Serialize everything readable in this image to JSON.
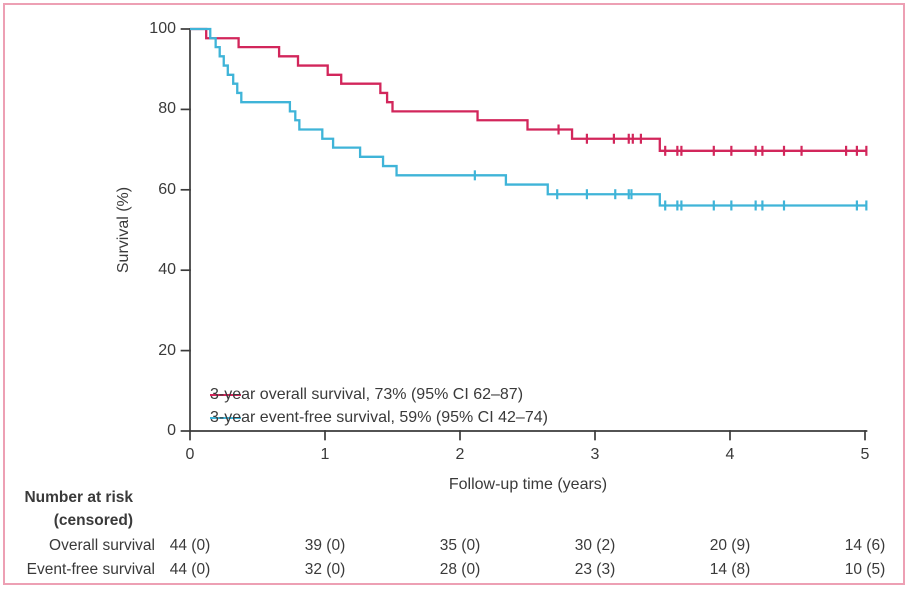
{
  "figure": {
    "background_color": "#ffffff",
    "border_color": "#eda0b4",
    "axis_color": "#3b3b3b",
    "text_color": "#3a3a3a"
  },
  "chart_data": {
    "type": "line",
    "variant": "kaplan-meier-step",
    "title": "",
    "xlabel": "Follow-up time (years)",
    "ylabel": "Survival (%)",
    "xlim": [
      0,
      5
    ],
    "ylim": [
      0,
      100
    ],
    "xticks": [
      0,
      1,
      2,
      3,
      4,
      5
    ],
    "yticks": [
      0,
      20,
      40,
      60,
      80,
      100
    ],
    "grid": false,
    "legend_position": "inside-lower-left",
    "series": [
      {
        "name": "Overall survival",
        "color": "#d2265b",
        "legend_label": "3-year overall survival, 73% (95% CI 62–87)",
        "steps": [
          [
            0,
            100
          ],
          [
            0.12,
            97.7
          ],
          [
            0.36,
            95.5
          ],
          [
            0.66,
            93.2
          ],
          [
            0.8,
            90.9
          ],
          [
            1.02,
            88.6
          ],
          [
            1.12,
            86.4
          ],
          [
            1.41,
            84.1
          ],
          [
            1.46,
            81.8
          ],
          [
            1.5,
            79.5
          ],
          [
            2.13,
            77.3
          ],
          [
            2.5,
            75.0
          ],
          [
            2.83,
            72.7
          ],
          [
            3.48,
            69.7
          ]
        ],
        "end_time": 5.01,
        "censor_marks": [
          [
            2.73,
            75.0
          ],
          [
            2.94,
            72.7
          ],
          [
            3.14,
            72.7
          ],
          [
            3.25,
            72.7
          ],
          [
            3.28,
            72.7
          ],
          [
            3.34,
            72.7
          ],
          [
            3.52,
            69.7
          ],
          [
            3.61,
            69.7
          ],
          [
            3.64,
            69.7
          ],
          [
            3.88,
            69.7
          ],
          [
            4.01,
            69.7
          ],
          [
            4.19,
            69.7
          ],
          [
            4.24,
            69.7
          ],
          [
            4.4,
            69.7
          ],
          [
            4.53,
            69.7
          ],
          [
            4.86,
            69.7
          ],
          [
            4.94,
            69.7
          ],
          [
            5.01,
            69.7
          ]
        ]
      },
      {
        "name": "Event-free survival",
        "color": "#3fb4d8",
        "legend_label": "3-year event-free survival, 59% (95% CI 42–74)",
        "steps": [
          [
            0,
            100
          ],
          [
            0.15,
            97.7
          ],
          [
            0.19,
            95.5
          ],
          [
            0.22,
            93.2
          ],
          [
            0.25,
            90.9
          ],
          [
            0.28,
            88.6
          ],
          [
            0.32,
            86.4
          ],
          [
            0.35,
            84.1
          ],
          [
            0.38,
            81.8
          ],
          [
            0.74,
            79.5
          ],
          [
            0.78,
            77.3
          ],
          [
            0.81,
            75.0
          ],
          [
            0.98,
            72.7
          ],
          [
            1.06,
            70.5
          ],
          [
            1.26,
            68.2
          ],
          [
            1.43,
            65.9
          ],
          [
            1.53,
            63.6
          ],
          [
            2.34,
            61.3
          ],
          [
            2.65,
            58.9
          ],
          [
            3.48,
            56.1
          ]
        ],
        "end_time": 5.01,
        "censor_marks": [
          [
            2.11,
            63.6
          ],
          [
            2.72,
            58.9
          ],
          [
            2.94,
            58.9
          ],
          [
            3.15,
            58.9
          ],
          [
            3.25,
            58.9
          ],
          [
            3.27,
            58.9
          ],
          [
            3.52,
            56.1
          ],
          [
            3.61,
            56.1
          ],
          [
            3.64,
            56.1
          ],
          [
            3.88,
            56.1
          ],
          [
            4.01,
            56.1
          ],
          [
            4.19,
            56.1
          ],
          [
            4.24,
            56.1
          ],
          [
            4.4,
            56.1
          ],
          [
            4.94,
            56.1
          ],
          [
            5.01,
            56.1
          ]
        ]
      }
    ]
  },
  "risk_table": {
    "header_line1": "Number at risk",
    "header_line2": "(censored)",
    "rows": [
      {
        "label": "Overall survival",
        "values": [
          "44 (0)",
          "39 (0)",
          "35 (0)",
          "30 (2)",
          "20 (9)",
          "14 (6)"
        ]
      },
      {
        "label": "Event-free survival",
        "values": [
          "44 (0)",
          "32 (0)",
          "28 (0)",
          "23 (3)",
          "14 (8)",
          "10 (5)"
        ]
      }
    ]
  }
}
